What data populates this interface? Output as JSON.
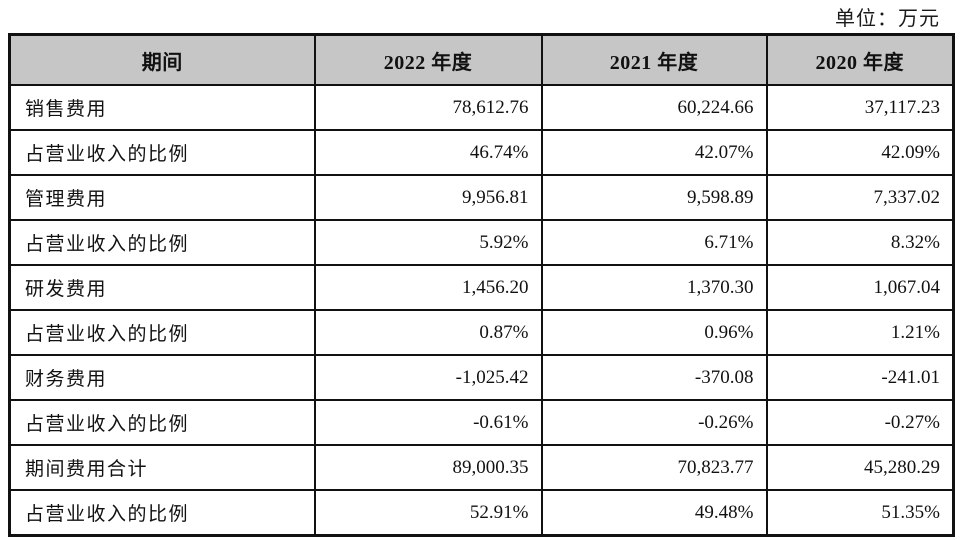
{
  "unit_label": "单位：万元",
  "colors": {
    "header_bg": "#c6c6c6",
    "border": "#111111",
    "text": "#1a1a1a"
  },
  "table": {
    "headers": [
      "期间",
      "2022 年度",
      "2021 年度",
      "2020 年度"
    ],
    "rows": [
      {
        "label": "销售费用",
        "values": [
          "78,612.76",
          "60,224.66",
          "37,117.23"
        ]
      },
      {
        "label": "占营业收入的比例",
        "values": [
          "46.74%",
          "42.07%",
          "42.09%"
        ]
      },
      {
        "label": "管理费用",
        "values": [
          "9,956.81",
          "9,598.89",
          "7,337.02"
        ]
      },
      {
        "label": "占营业收入的比例",
        "values": [
          "5.92%",
          "6.71%",
          "8.32%"
        ]
      },
      {
        "label": "研发费用",
        "values": [
          "1,456.20",
          "1,370.30",
          "1,067.04"
        ]
      },
      {
        "label": "占营业收入的比例",
        "values": [
          "0.87%",
          "0.96%",
          "1.21%"
        ]
      },
      {
        "label": "财务费用",
        "values": [
          "-1,025.42",
          "-370.08",
          "-241.01"
        ]
      },
      {
        "label": "占营业收入的比例",
        "values": [
          "-0.61%",
          "-0.26%",
          "-0.27%"
        ]
      },
      {
        "label": "期间费用合计",
        "values": [
          "89,000.35",
          "70,823.77",
          "45,280.29"
        ]
      },
      {
        "label": "占营业收入的比例",
        "values": [
          "52.91%",
          "49.48%",
          "51.35%"
        ]
      }
    ]
  }
}
